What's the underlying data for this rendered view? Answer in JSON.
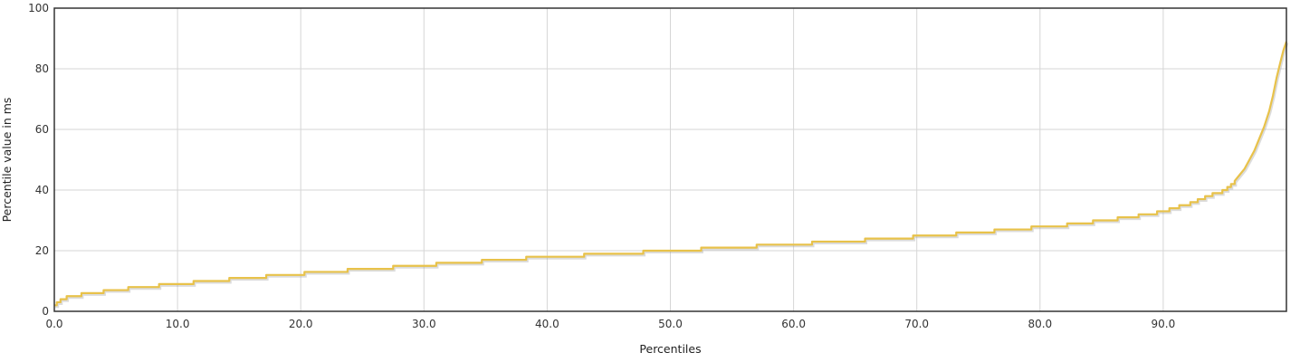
{
  "chart_data": {
    "type": "line",
    "title": "",
    "xlabel": "Percentiles",
    "ylabel": "Percentile value in ms",
    "xlim": [
      0,
      100
    ],
    "ylim": [
      0,
      100
    ],
    "x_ticks": [
      0,
      10,
      20,
      30,
      40,
      50,
      60,
      70,
      80,
      90
    ],
    "x_tick_labels": [
      "0.0",
      "10.0",
      "20.0",
      "30.0",
      "40.0",
      "50.0",
      "60.0",
      "70.0",
      "80.0",
      "90.0"
    ],
    "y_ticks": [
      0,
      20,
      40,
      60,
      80,
      100
    ],
    "y_tick_labels": [
      "0",
      "20",
      "40",
      "60",
      "80",
      "100"
    ],
    "grid": true,
    "legend": "none",
    "series": [
      {
        "name": "Percentile value in ms",
        "color": "#e8c24a",
        "shadow_color": "#9a9a9a",
        "step_points": [
          [
            0.0,
            2
          ],
          [
            0.2,
            3
          ],
          [
            0.5,
            4
          ],
          [
            1.0,
            5
          ],
          [
            2.2,
            6
          ],
          [
            4.0,
            7
          ],
          [
            6.0,
            8
          ],
          [
            8.5,
            9
          ],
          [
            11.3,
            10
          ],
          [
            14.2,
            11
          ],
          [
            17.2,
            12
          ],
          [
            20.3,
            13
          ],
          [
            23.8,
            14
          ],
          [
            27.5,
            15
          ],
          [
            31.0,
            16
          ],
          [
            34.7,
            17
          ],
          [
            38.3,
            18
          ],
          [
            43.0,
            19
          ],
          [
            47.8,
            20
          ],
          [
            52.5,
            21
          ],
          [
            57.0,
            22
          ],
          [
            61.5,
            23
          ],
          [
            65.8,
            24
          ],
          [
            69.7,
            25
          ],
          [
            73.2,
            26
          ],
          [
            76.3,
            27
          ],
          [
            79.3,
            28
          ],
          [
            82.2,
            29
          ],
          [
            84.3,
            30
          ],
          [
            86.3,
            31
          ],
          [
            88.0,
            32
          ],
          [
            89.5,
            33
          ],
          [
            90.5,
            34
          ],
          [
            91.3,
            35
          ],
          [
            92.2,
            36
          ],
          [
            92.8,
            37
          ],
          [
            93.4,
            38
          ],
          [
            94.0,
            39
          ],
          [
            94.8,
            40
          ],
          [
            95.2,
            41
          ],
          [
            95.5,
            42
          ],
          [
            95.8,
            43
          ]
        ],
        "smooth_points": [
          [
            95.8,
            43
          ],
          [
            96.2,
            45
          ],
          [
            96.6,
            47
          ],
          [
            97.0,
            50
          ],
          [
            97.4,
            53
          ],
          [
            97.8,
            57
          ],
          [
            98.2,
            61
          ],
          [
            98.6,
            66
          ],
          [
            98.9,
            71
          ],
          [
            99.2,
            77
          ],
          [
            99.5,
            82
          ],
          [
            99.75,
            86
          ],
          [
            100.0,
            89
          ]
        ]
      }
    ]
  }
}
